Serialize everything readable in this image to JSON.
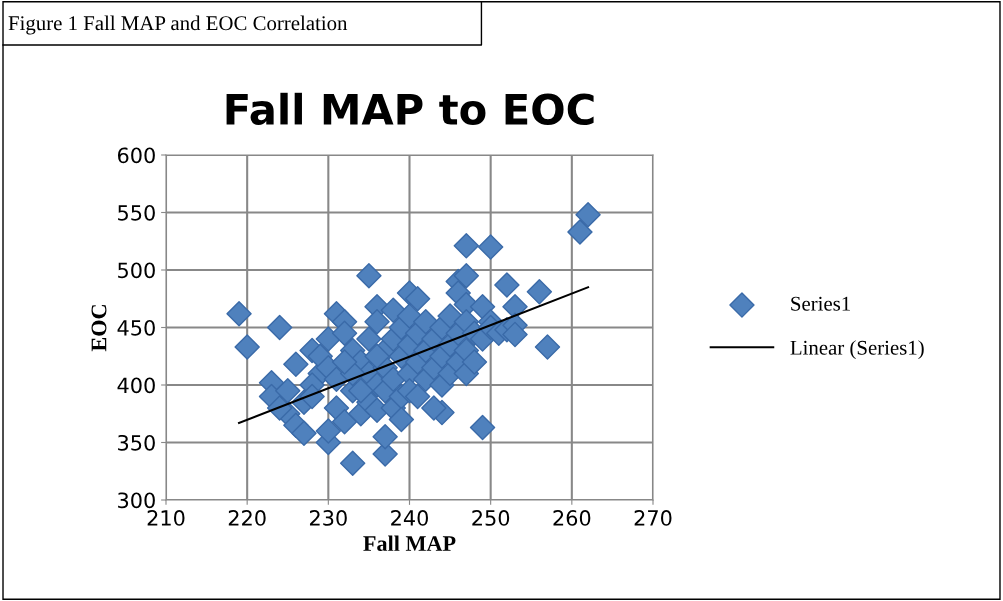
{
  "chart_data": {
    "type": "scatter",
    "title": "Fall MAP to EOC",
    "xlabel": "Fall MAP",
    "ylabel": "EOC",
    "annotations": [
      "Figure 1 Fall MAP and EOC Correlation"
    ],
    "xlim": [
      210,
      270
    ],
    "xticks": [
      210,
      220,
      230,
      240,
      250,
      260,
      270
    ],
    "ylim": [
      300,
      600
    ],
    "yticks": [
      300,
      350,
      400,
      450,
      500,
      550,
      600
    ],
    "grid": true,
    "legend": "right",
    "marker": "diamond",
    "series": [
      {
        "name": "Series1",
        "color": "#4f81bd",
        "x": [
          219,
          220,
          224,
          223,
          223,
          225,
          226,
          227,
          226,
          228,
          229,
          230,
          230,
          233,
          237,
          237,
          235,
          231,
          232,
          247,
          250,
          261,
          262,
          256,
          257,
          249,
          244,
          253,
          252,
          246,
          247,
          240,
          236,
          224,
          225,
          227,
          228,
          229,
          230,
          230,
          231,
          231,
          232,
          232,
          233,
          233,
          234,
          234,
          235,
          235,
          235,
          236,
          236,
          236,
          237,
          237,
          237,
          238,
          238,
          238,
          238,
          239,
          239,
          239,
          240,
          240,
          240,
          240,
          241,
          241,
          241,
          242,
          242,
          242,
          243,
          243,
          244,
          244,
          244,
          245,
          245,
          245,
          246,
          246,
          246,
          247,
          247,
          247,
          247,
          248,
          248,
          249,
          249,
          250,
          250,
          251,
          252,
          253,
          253,
          234,
          233,
          236,
          239,
          241,
          243,
          228,
          232
        ],
        "values": [
          462,
          433,
          450,
          402,
          390,
          375,
          365,
          358,
          418,
          430,
          410,
          350,
          360,
          332,
          340,
          355,
          495,
          462,
          455,
          521,
          520,
          533,
          548,
          481,
          433,
          363,
          376,
          468,
          487,
          490,
          495,
          480,
          468,
          380,
          395,
          385,
          400,
          425,
          440,
          415,
          405,
          380,
          368,
          445,
          430,
          395,
          420,
          375,
          410,
          440,
          385,
          400,
          455,
          378,
          430,
          415,
          395,
          465,
          440,
          405,
          380,
          450,
          425,
          390,
          460,
          435,
          410,
          395,
          475,
          445,
          420,
          455,
          430,
          405,
          440,
          415,
          450,
          425,
          400,
          460,
          435,
          410,
          480,
          445,
          420,
          470,
          455,
          430,
          410,
          445,
          420,
          468,
          440,
          455,
          450,
          445,
          448,
          452,
          444,
          395,
          410,
          425,
          370,
          390,
          380,
          390,
          420
        ]
      },
      {
        "name": "Linear (Series1)",
        "color": "#000000",
        "type": "line",
        "marker": "none",
        "x": [
          219,
          262
        ],
        "values": [
          367,
          485
        ]
      }
    ]
  }
}
